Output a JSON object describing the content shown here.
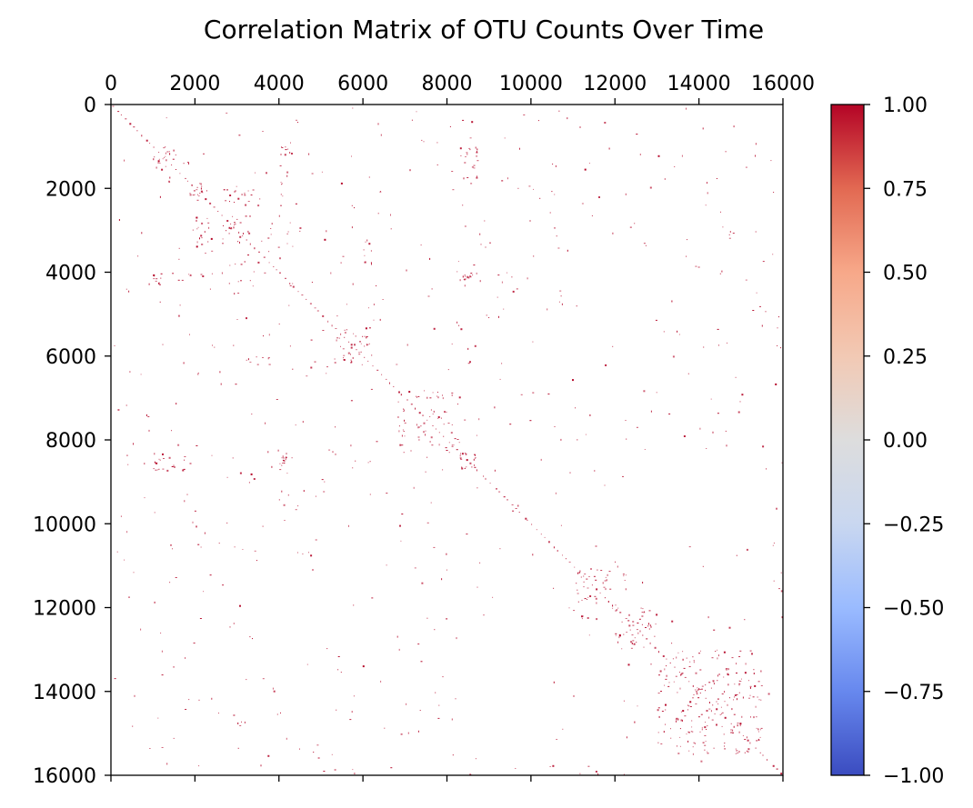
{
  "chart_data": {
    "type": "heatmap",
    "title": "Correlation Matrix of OTU Counts Over Time",
    "xlabel": "",
    "ylabel": "",
    "xlim": [
      0,
      16000
    ],
    "ylim": [
      0,
      16000
    ],
    "x_axis_position": "top",
    "y_axis_inverted": true,
    "x_ticks": [
      0,
      2000,
      4000,
      6000,
      8000,
      10000,
      12000,
      14000,
      16000
    ],
    "y_ticks": [
      0,
      2000,
      4000,
      6000,
      8000,
      10000,
      12000,
      14000,
      16000
    ],
    "x_tick_labels": [
      "0",
      "2000",
      "4000",
      "6000",
      "8000",
      "10000",
      "12000",
      "14000",
      "16000"
    ],
    "y_tick_labels": [
      "0",
      "2000",
      "4000",
      "6000",
      "8000",
      "10000",
      "12000",
      "14000",
      "16000"
    ],
    "grid": false,
    "colormap": "coolwarm",
    "colorbar": {
      "vmin": -1.0,
      "vmax": 1.0,
      "ticks": [
        1.0,
        0.75,
        0.5,
        0.25,
        0.0,
        -0.25,
        -0.5,
        -0.75,
        -1.0
      ],
      "tick_labels": [
        "1.00",
        "0.75",
        "0.50",
        "0.25",
        "0.00",
        "−0.25",
        "−0.50",
        "−0.75",
        "−1.00"
      ],
      "colors": [
        "#3b4cc0",
        "#6788ee",
        "#9abbff",
        "#c9d7f0",
        "#dddddd",
        "#f2c9b4",
        "#f7a889",
        "#e26952",
        "#b40426"
      ]
    },
    "background_color": "#ffffff",
    "high_correlation_color": "#b40426",
    "clusters": [
      {
        "x": [
          1000,
          1900
        ],
        "y": [
          1000,
          1400
        ],
        "value": 0.9
      },
      {
        "x": [
          1800,
          2300
        ],
        "y": [
          1800,
          2200
        ],
        "value": 0.9
      },
      {
        "x": [
          2500,
          3500
        ],
        "y": [
          1900,
          2200
        ],
        "value": 0.9
      },
      {
        "x": [
          4000,
          4300
        ],
        "y": [
          1000,
          1200
        ],
        "value": 0.9
      },
      {
        "x": [
          8300,
          8700
        ],
        "y": [
          1000,
          1400
        ],
        "value": 0.9
      },
      {
        "x": [
          2000,
          4500
        ],
        "y": [
          2800,
          3400
        ],
        "value": 0.85
      },
      {
        "x": [
          1000,
          2500
        ],
        "y": [
          4000,
          4200
        ],
        "value": 0.9
      },
      {
        "x": [
          8300,
          8700
        ],
        "y": [
          4000,
          4200
        ],
        "value": 0.9
      },
      {
        "x": [
          1000,
          1900
        ],
        "y": [
          8400,
          8800
        ],
        "value": 0.9
      },
      {
        "x": [
          4000,
          4300
        ],
        "y": [
          8300,
          8600
        ],
        "value": 0.9
      },
      {
        "x": [
          8300,
          8700
        ],
        "y": [
          8300,
          8700
        ],
        "value": 0.9
      },
      {
        "x": [
          6800,
          7900
        ],
        "y": [
          6800,
          7000
        ],
        "value": 0.85
      },
      {
        "x": [
          6800,
          8200
        ],
        "y": [
          7500,
          8300
        ],
        "value": 0.85
      },
      {
        "x": [
          11000,
          12300
        ],
        "y": [
          11000,
          11800
        ],
        "value": 0.85
      },
      {
        "x": [
          12000,
          13000
        ],
        "y": [
          12000,
          13000
        ],
        "value": 0.85
      },
      {
        "x": [
          5300,
          6200
        ],
        "y": [
          5300,
          6200
        ],
        "value": 0.85
      },
      {
        "x": [
          3000,
          3800
        ],
        "y": [
          6000,
          6200
        ],
        "value": 0.85
      },
      {
        "x": [
          13000,
          15500
        ],
        "y": [
          13000,
          15500
        ],
        "value": 0.8
      }
    ]
  }
}
